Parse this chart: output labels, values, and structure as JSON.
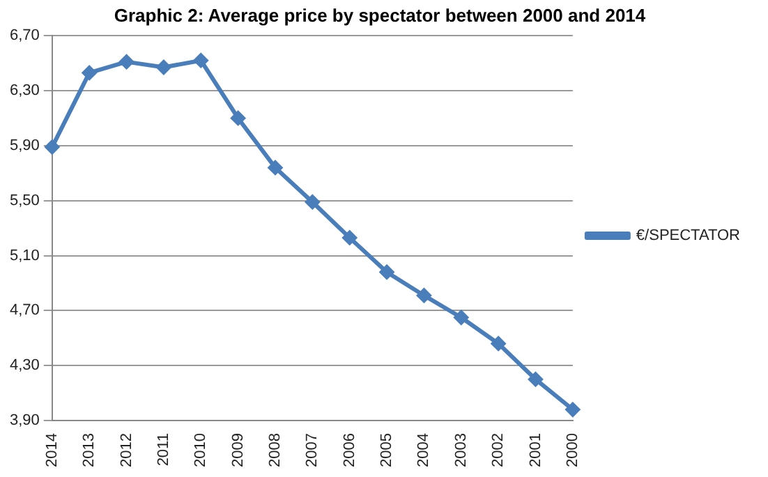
{
  "chart_data": {
    "type": "line",
    "title": "Graphic 2: Average price by spectator between 2000 and 2014",
    "categories": [
      "2014",
      "2013",
      "2012",
      "2011",
      "2010",
      "2009",
      "2008",
      "2007",
      "2006",
      "2005",
      "2004",
      "2003",
      "2002",
      "2001",
      "2000"
    ],
    "series": [
      {
        "name": "€/SPECTATOR",
        "color": "#4a7ebb",
        "values": [
          5.89,
          6.43,
          6.51,
          6.47,
          6.52,
          6.1,
          5.74,
          5.49,
          5.23,
          4.98,
          4.81,
          4.65,
          4.46,
          4.2,
          3.98
        ]
      }
    ],
    "ylim": [
      3.9,
      6.7
    ],
    "yticks": [
      {
        "value": 3.9,
        "label": "3,90"
      },
      {
        "value": 4.3,
        "label": "4,30"
      },
      {
        "value": 4.7,
        "label": "4,70"
      },
      {
        "value": 5.1,
        "label": "5,10"
      },
      {
        "value": 5.5,
        "label": "5,50"
      },
      {
        "value": 5.9,
        "label": "5,90"
      },
      {
        "value": 6.3,
        "label": "6,30"
      },
      {
        "value": 6.7,
        "label": "6,70"
      }
    ],
    "grid": "y",
    "legend": "right",
    "marker": "diamond",
    "line_style": "solid"
  }
}
